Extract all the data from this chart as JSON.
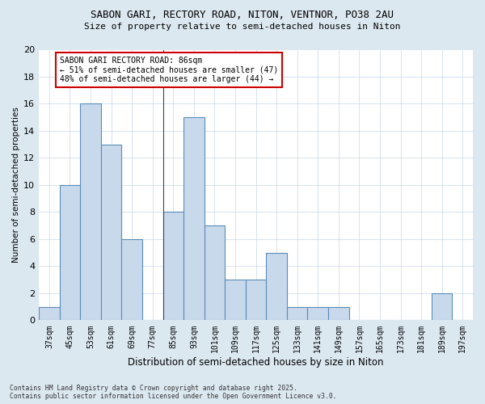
{
  "title_line1": "SABON GARI, RECTORY ROAD, NITON, VENTNOR, PO38 2AU",
  "title_line2": "Size of property relative to semi-detached houses in Niton",
  "xlabel": "Distribution of semi-detached houses by size in Niton",
  "ylabel": "Number of semi-detached properties",
  "categories": [
    "37sqm",
    "45sqm",
    "53sqm",
    "61sqm",
    "69sqm",
    "77sqm",
    "85sqm",
    "93sqm",
    "101sqm",
    "109sqm",
    "117sqm",
    "125sqm",
    "133sqm",
    "141sqm",
    "149sqm",
    "157sqm",
    "165sqm",
    "173sqm",
    "181sqm",
    "189sqm",
    "197sqm"
  ],
  "values": [
    1,
    10,
    16,
    13,
    6,
    0,
    8,
    15,
    7,
    3,
    3,
    5,
    1,
    1,
    1,
    0,
    0,
    0,
    0,
    2,
    0
  ],
  "bar_color": "#c9d9ec",
  "bar_edge_color": "#5b8db8",
  "marker_label": "SABON GARI RECTORY ROAD: 86sqm\n← 51% of semi-detached houses are smaller (47)\n48% of semi-detached houses are larger (44) →",
  "annotation_box_color": "#ffffff",
  "annotation_box_edge_color": "#cc0000",
  "vline_color": "#444444",
  "grid_color": "#c8d8e8",
  "ylim": [
    0,
    20
  ],
  "yticks": [
    0,
    2,
    4,
    6,
    8,
    10,
    12,
    14,
    16,
    18,
    20
  ],
  "footer": "Contains HM Land Registry data © Crown copyright and database right 2025.\nContains public sector information licensed under the Open Government Licence v3.0.",
  "bg_color": "#dce8f0",
  "plot_bg_color": "#ffffff"
}
